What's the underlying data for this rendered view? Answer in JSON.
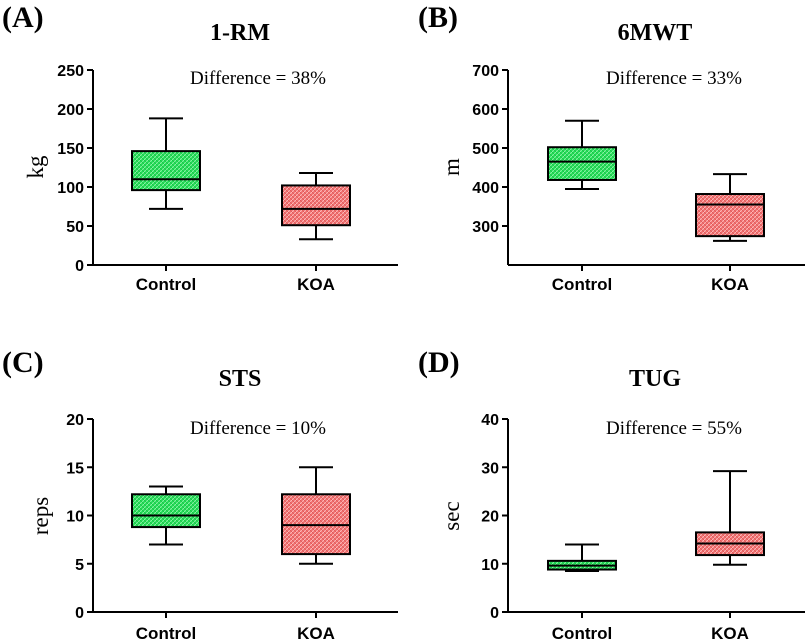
{
  "figure": {
    "description_note": ""
  },
  "chart_data": [
    {
      "panel": "(A)",
      "type": "box",
      "title": "1-RM",
      "ylabel": "kg",
      "annotation": "Difference = 38%",
      "ylim": [
        0,
        250
      ],
      "yticks": [
        0,
        50,
        100,
        150,
        200,
        250
      ],
      "categories": [
        "Control",
        "KOA"
      ],
      "boxes": [
        {
          "name": "Control",
          "color": "#22dd55",
          "min": 72,
          "q1": 96,
          "median": 110,
          "q3": 146,
          "max": 188
        },
        {
          "name": "KOA",
          "color": "#f07070",
          "min": 33,
          "q1": 51,
          "median": 72,
          "q3": 102,
          "max": 118
        }
      ]
    },
    {
      "panel": "(B)",
      "type": "box",
      "title": "6MWT",
      "ylabel": "m",
      "annotation": "Difference = 33%",
      "ylim": [
        200,
        700
      ],
      "yticks": [
        300,
        400,
        500,
        600,
        700
      ],
      "categories": [
        "Control",
        "KOA"
      ],
      "boxes": [
        {
          "name": "Control",
          "color": "#22dd55",
          "min": 395,
          "q1": 418,
          "median": 465,
          "q3": 502,
          "max": 570
        },
        {
          "name": "KOA",
          "color": "#f07070",
          "min": 262,
          "q1": 274,
          "median": 355,
          "q3": 382,
          "max": 433
        }
      ]
    },
    {
      "panel": "(C)",
      "type": "box",
      "title": "STS",
      "ylabel": "reps",
      "annotation": "Difference = 10%",
      "ylim": [
        0,
        20
      ],
      "yticks": [
        0,
        5,
        10,
        15,
        20
      ],
      "categories": [
        "Control",
        "KOA"
      ],
      "boxes": [
        {
          "name": "Control",
          "color": "#22dd55",
          "min": 7,
          "q1": 8.8,
          "median": 10,
          "q3": 12.2,
          "max": 13
        },
        {
          "name": "KOA",
          "color": "#f07070",
          "min": 5,
          "q1": 6,
          "median": 9,
          "q3": 12.2,
          "max": 15
        }
      ]
    },
    {
      "panel": "(D)",
      "type": "box",
      "title": "TUG",
      "ylabel": "sec",
      "annotation": "Difference = 55%",
      "ylim": [
        0,
        40
      ],
      "yticks": [
        0,
        10,
        20,
        30,
        40
      ],
      "categories": [
        "Control",
        "KOA"
      ],
      "boxes": [
        {
          "name": "Control",
          "color": "#22dd55",
          "min": 8.5,
          "q1": 8.8,
          "median": 9.6,
          "q3": 10.6,
          "max": 14
        },
        {
          "name": "KOA",
          "color": "#f07070",
          "min": 9.8,
          "q1": 11.8,
          "median": 14.2,
          "q3": 16.5,
          "max": 29.2
        }
      ]
    }
  ]
}
